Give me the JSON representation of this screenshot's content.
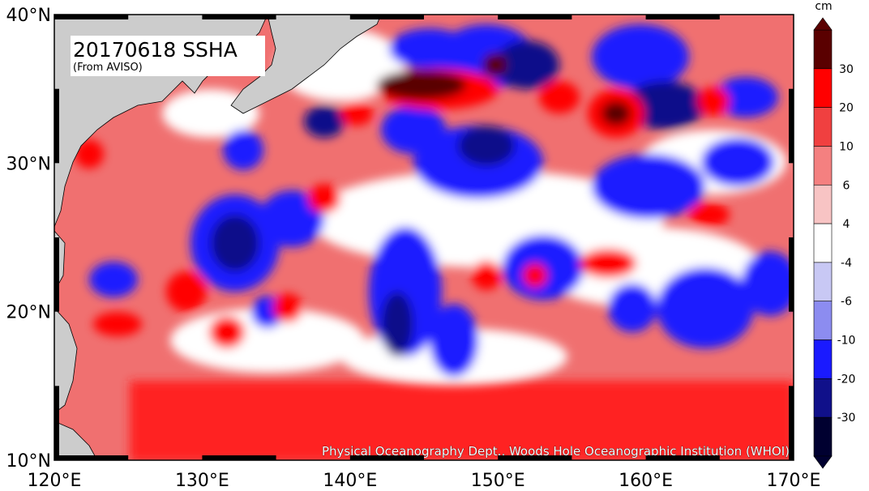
{
  "title": "20170618 SSHA",
  "subtitle": "(From AVISO)",
  "credit": "Physical Oceanography Dept., Woods Hole Oceanographic Institution (WHOI)",
  "colorbar": {
    "unit": "cm",
    "levels": [
      "30",
      "20",
      "10",
      "6",
      "4",
      "-4",
      "-6",
      "-10",
      "-20",
      "-30"
    ],
    "colors": [
      "#5a0000",
      "#ff0000",
      "#f04040",
      "#f48080",
      "#f8c4c4",
      "#ffffff",
      "#c8c8f4",
      "#8c8cf0",
      "#1a1aff",
      "#10108a",
      "#000030"
    ]
  },
  "axes": {
    "lon_labels": [
      "120°E",
      "130°E",
      "140°E",
      "150°E",
      "160°E",
      "170°E"
    ],
    "lat_labels": [
      "40°N",
      "30°N",
      "20°N",
      "10°N"
    ]
  },
  "colors": {
    "land": "#cccccc",
    "ocean_background": "#f07070"
  }
}
